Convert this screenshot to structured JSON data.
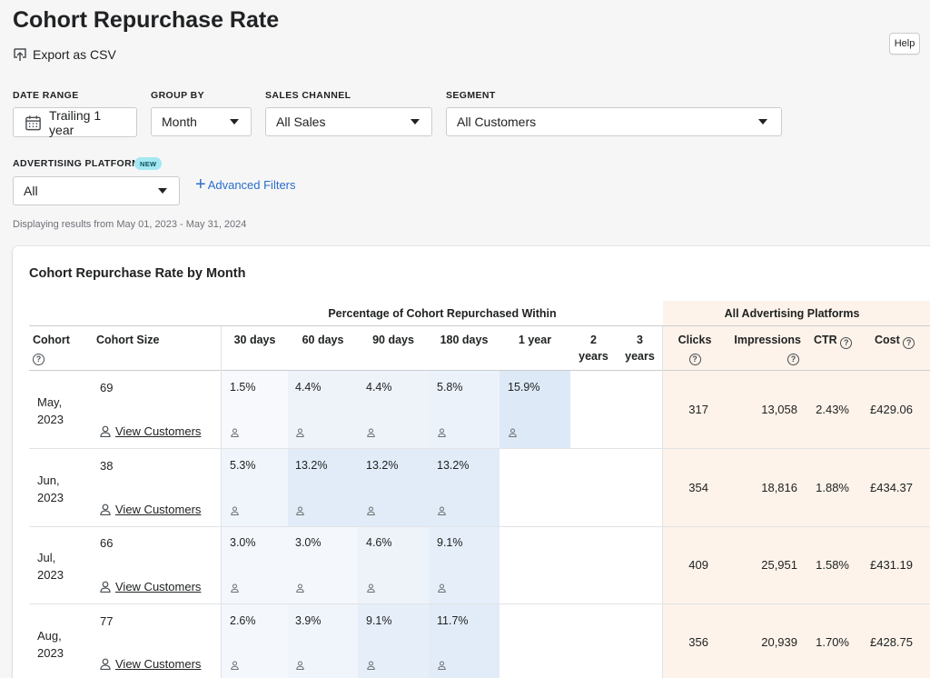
{
  "page": {
    "title": "Cohort Repurchase Rate",
    "export_label": "Export as CSV",
    "help_label": "Help"
  },
  "filters": {
    "date_range": {
      "label": "DATE RANGE",
      "value": "Trailing 1 year"
    },
    "group_by": {
      "label": "GROUP BY",
      "value": "Month"
    },
    "sales_channel": {
      "label": "SALES CHANNEL",
      "value": "All Sales"
    },
    "segment": {
      "label": "SEGMENT",
      "value": "All Customers"
    },
    "advertising_platform": {
      "label": "ADVERTISING PLATFORM",
      "badge": "NEW",
      "value": "All"
    },
    "advanced_filters_label": "Advanced Filters",
    "date_note": "Displaying results from May 01, 2023 - May 31, 2024"
  },
  "table": {
    "title": "Cohort Repurchase Rate by Month",
    "group_header_pct": "Percentage of Cohort Repurchased Within",
    "group_header_ads": "All Advertising Platforms",
    "columns": {
      "cohort": "Cohort",
      "cohort_size": "Cohort Size",
      "d30": "30 days",
      "d60": "60 days",
      "d90": "90 days",
      "d180": "180 days",
      "y1": "1 year",
      "y2_line1": "2",
      "y2_line2": "years",
      "y3_line1": "3",
      "y3_line2": "years",
      "clicks": "Clicks",
      "impressions": "Impressions",
      "ctr": "CTR",
      "cost": "Cost"
    },
    "view_customers_label": "View Customers",
    "rows": [
      {
        "cohort_month": "May,",
        "cohort_year": "2023",
        "size": "69",
        "pcts": [
          "1.5%",
          "4.4%",
          "4.4%",
          "5.8%",
          "15.9%"
        ],
        "clicks": "317",
        "impressions": "13,058",
        "ctr": "2.43%",
        "cost": "£429.06"
      },
      {
        "cohort_month": "Jun,",
        "cohort_year": "2023",
        "size": "38",
        "pcts": [
          "5.3%",
          "13.2%",
          "13.2%",
          "13.2%"
        ],
        "clicks": "354",
        "impressions": "18,816",
        "ctr": "1.88%",
        "cost": "£434.37"
      },
      {
        "cohort_month": "Jul,",
        "cohort_year": "2023",
        "size": "66",
        "pcts": [
          "3.0%",
          "3.0%",
          "4.6%",
          "9.1%"
        ],
        "clicks": "409",
        "impressions": "25,951",
        "ctr": "1.58%",
        "cost": "£431.19"
      },
      {
        "cohort_month": "Aug,",
        "cohort_year": "2023",
        "size": "77",
        "pcts": [
          "2.6%",
          "3.9%",
          "9.1%",
          "11.7%"
        ],
        "clicks": "356",
        "impressions": "20,939",
        "ctr": "1.70%",
        "cost": "£428.75"
      }
    ]
  },
  "colors": {
    "accent_link": "#2c6ecb",
    "ads_background": "#fdf3ea",
    "heat_low": "#f7f9fc",
    "heat_mid": "#eaf1fa",
    "heat_high": "#dbe8f6",
    "badge_bg": "#a4e8f2"
  }
}
